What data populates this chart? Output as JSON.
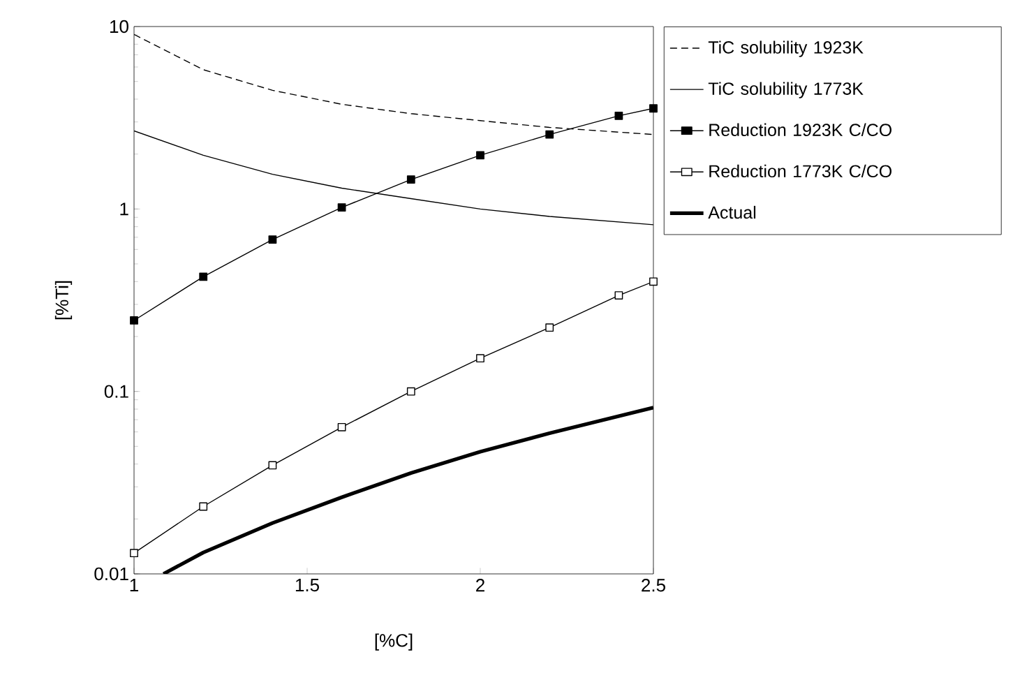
{
  "chart_data": {
    "type": "line",
    "xlabel": "[%C]",
    "ylabel": "[%Ti]",
    "log": "y",
    "xlim": [
      1,
      2.5
    ],
    "ylim": [
      0.01,
      10
    ],
    "xticks": [
      1,
      1.5,
      2,
      2.5
    ],
    "yticks": [
      0.01,
      0.1,
      1,
      10
    ],
    "grid": false,
    "legend": "right",
    "series": [
      {
        "name": "TiC solubility 1923K",
        "color": "#000000",
        "line_style": "dashed",
        "marker": "none",
        "x": [
          1,
          1.2,
          1.4,
          1.6,
          1.8,
          2.0,
          2.2,
          2.5
        ],
        "values": [
          9.05,
          5.8,
          4.47,
          3.75,
          3.33,
          3.05,
          2.8,
          2.56
        ]
      },
      {
        "name": "TiC solubility 1773K",
        "color": "#000000",
        "line_style": "solid",
        "marker": "none",
        "x": [
          1,
          1.2,
          1.4,
          1.6,
          1.8,
          2.0,
          2.2,
          2.5
        ],
        "values": [
          2.68,
          1.97,
          1.55,
          1.3,
          1.14,
          1.0,
          0.91,
          0.82
        ]
      },
      {
        "name": "Reduction 1923K C/CO",
        "color": "#000000",
        "line_style": "solid",
        "marker": "square",
        "x": [
          1,
          1.2,
          1.4,
          1.6,
          1.8,
          2.0,
          2.2,
          2.4,
          2.5
        ],
        "values": [
          0.245,
          0.425,
          0.68,
          1.02,
          1.45,
          1.97,
          2.56,
          3.24,
          3.56
        ]
      },
      {
        "name": "Reduction 1773K C/CO",
        "color": "#000000",
        "line_style": "solid",
        "marker": "square",
        "x": [
          1,
          1.2,
          1.4,
          1.6,
          1.8,
          2.0,
          2.2,
          2.4,
          2.5
        ],
        "values": [
          0.013,
          0.0234,
          0.0394,
          0.0637,
          0.1,
          0.152,
          0.224,
          0.336,
          0.4
        ]
      },
      {
        "name": "Actual",
        "color": "#000000",
        "line_style": "solid",
        "marker": "none",
        "x": [
          1.085,
          1.2,
          1.4,
          1.6,
          1.8,
          2.0,
          2.2,
          2.5
        ],
        "values": [
          0.01,
          0.0131,
          0.019,
          0.0263,
          0.0357,
          0.0467,
          0.059,
          0.0815
        ]
      }
    ]
  }
}
